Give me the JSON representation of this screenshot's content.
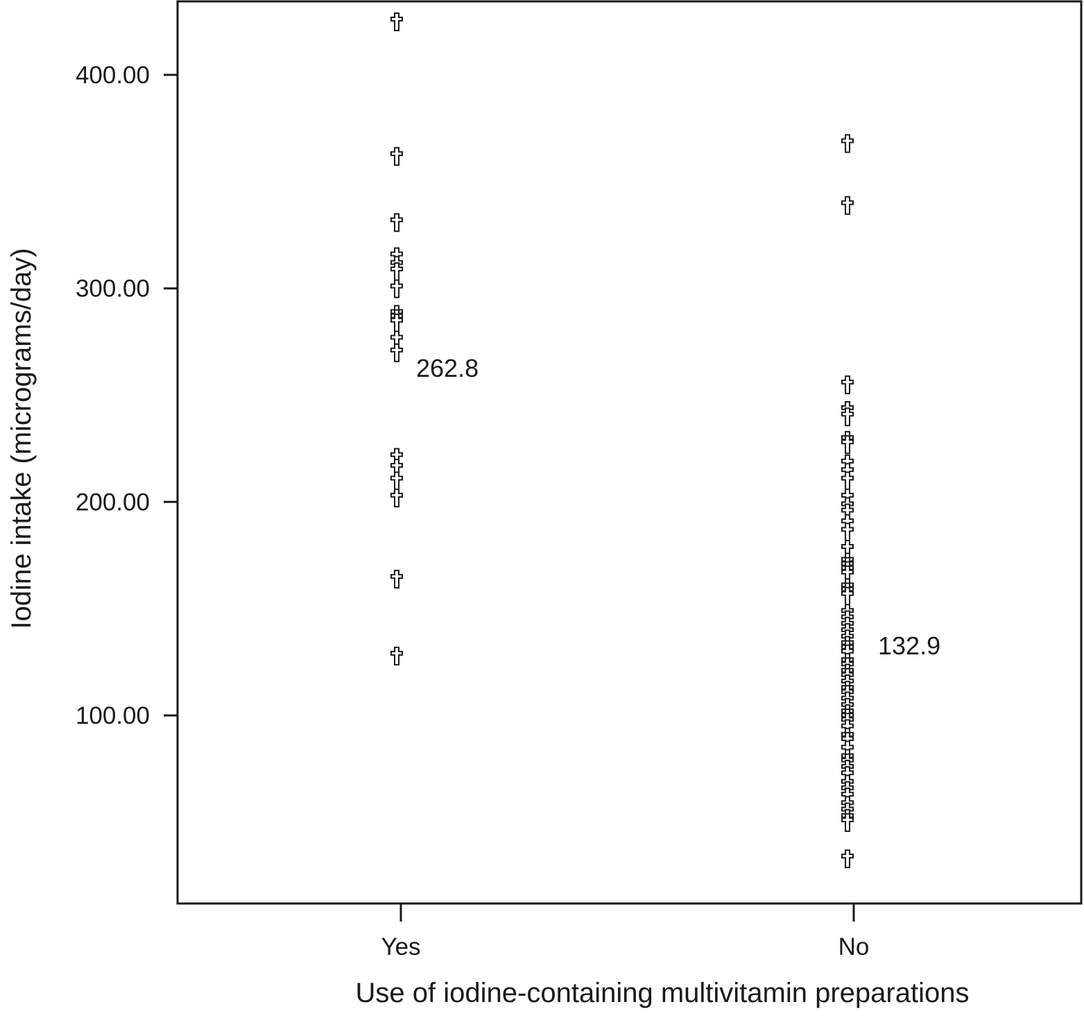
{
  "chart_data": {
    "type": "scatter",
    "title": "",
    "xlabel": "Use of iodine-containing multivitamin preparations",
    "ylabel": "Iodine intake (micrograms/day)",
    "categories": [
      "Yes",
      "No"
    ],
    "y_ticks": [
      "100.00",
      "200.00",
      "300.00",
      "400.00"
    ],
    "y_tick_values": [
      100,
      200,
      300,
      400
    ],
    "ylim": [
      12,
      435
    ],
    "grid": false,
    "legend": "none",
    "marker": "cross-symbol",
    "marker_color": "#1a1a1a",
    "series": [
      {
        "category": "Yes",
        "values": [
          425,
          362,
          331,
          315,
          311,
          308,
          300,
          288,
          286,
          284,
          276,
          270,
          221,
          216,
          210,
          202,
          164,
          128
        ],
        "annotation": "262.8",
        "annotation_value": 262.8
      },
      {
        "category": "No",
        "values": [
          368,
          339,
          255,
          243,
          240,
          229,
          227,
          218,
          214,
          210,
          202,
          198,
          195,
          190,
          186,
          178,
          172,
          170,
          168,
          166,
          160,
          158,
          156,
          148,
          145,
          142,
          139,
          136,
          133,
          131,
          129,
          125,
          123,
          120,
          118,
          115,
          112,
          110,
          107,
          104,
          101,
          99,
          97,
          94,
          90,
          88,
          84,
          80,
          78,
          75,
          72,
          68,
          65,
          62,
          58,
          55,
          52,
          50,
          33
        ],
        "annotation": "132.9",
        "annotation_value": 132.9
      }
    ]
  }
}
